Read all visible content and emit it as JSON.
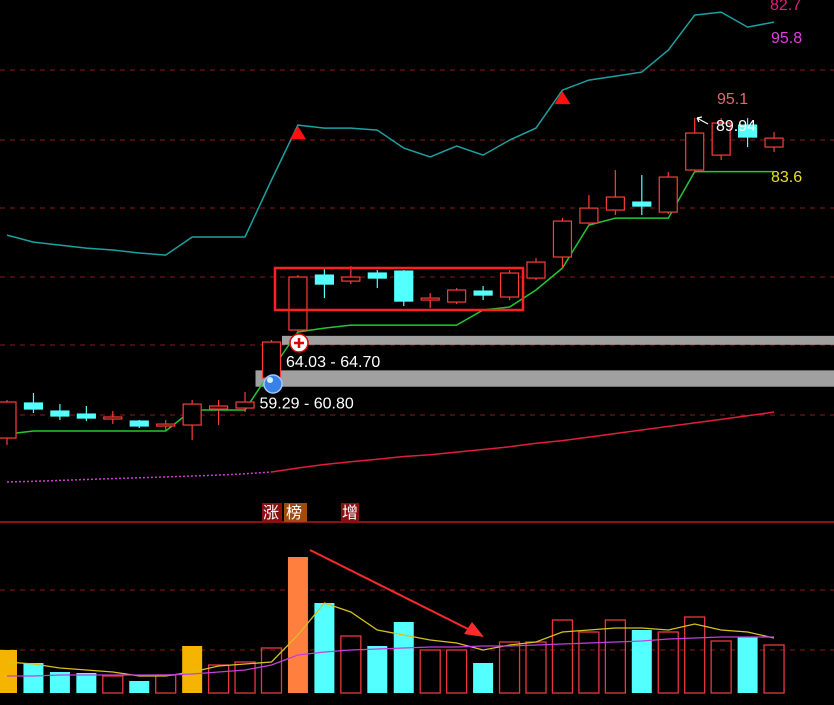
{
  "chart_data": [
    {
      "type": "candlestick",
      "ylim": [
        44,
        103
      ],
      "up_color": "#ff3b3b",
      "down_color": "#54ffff",
      "candles": [
        {
          "open": 53.49,
          "high": 57.79,
          "low": 52.7,
          "close": 57.56
        },
        {
          "open": 57.45,
          "high": 58.58,
          "low": 56.32,
          "close": 56.77
        },
        {
          "open": 56.54,
          "high": 57.33,
          "low": 55.53,
          "close": 55.98
        },
        {
          "open": 56.2,
          "high": 57.11,
          "low": 55.41,
          "close": 55.75
        },
        {
          "open": 55.64,
          "high": 56.54,
          "low": 55.07,
          "close": 55.87
        },
        {
          "open": 55.41,
          "high": 55.53,
          "low": 54.62,
          "close": 54.85
        },
        {
          "open": 54.85,
          "high": 55.53,
          "low": 54.4,
          "close": 55.07
        },
        {
          "open": 54.96,
          "high": 57.79,
          "low": 53.27,
          "close": 57.33
        },
        {
          "open": 56.77,
          "high": 57.79,
          "low": 54.96,
          "close": 57.11
        },
        {
          "open": 56.88,
          "high": 58.69,
          "low": 56.43,
          "close": 57.56
        },
        {
          "open": 60.27,
          "high": 64.57,
          "low": 59.48,
          "close": 64.34
        },
        {
          "open": 65.7,
          "high": 71.91,
          "low": 65.47,
          "close": 71.69
        },
        {
          "open": 71.91,
          "high": 72.7,
          "low": 69.31,
          "close": 70.89
        },
        {
          "open": 71.23,
          "high": 72.93,
          "low": 70.89,
          "close": 71.69
        },
        {
          "open": 72.14,
          "high": 72.48,
          "low": 70.44,
          "close": 71.57
        },
        {
          "open": 72.36,
          "high": 72.48,
          "low": 68.41,
          "close": 68.97
        },
        {
          "open": 69.09,
          "high": 69.88,
          "low": 68.18,
          "close": 69.31
        },
        {
          "open": 68.86,
          "high": 70.44,
          "low": 68.63,
          "close": 70.22
        },
        {
          "open": 70.1,
          "high": 70.67,
          "low": 69.09,
          "close": 69.65
        },
        {
          "open": 69.43,
          "high": 72.48,
          "low": 69.09,
          "close": 72.14
        },
        {
          "open": 71.57,
          "high": 73.83,
          "low": 71.35,
          "close": 73.38
        },
        {
          "open": 73.95,
          "high": 78.35,
          "low": 72.7,
          "close": 78.01
        },
        {
          "open": 77.79,
          "high": 80.95,
          "low": 77.45,
          "close": 79.48
        },
        {
          "open": 79.26,
          "high": 83.78,
          "low": 78.69,
          "close": 80.73
        },
        {
          "open": 80.16,
          "high": 83.21,
          "low": 78.69,
          "close": 79.71
        },
        {
          "open": 79.03,
          "high": 83.55,
          "low": 78.8,
          "close": 82.99
        },
        {
          "open": 83.78,
          "high": 89.65,
          "low": 83.55,
          "close": 87.96
        },
        {
          "open": 85.47,
          "high": 89.65,
          "low": 84.91,
          "close": 89.09
        },
        {
          "open": 88.86,
          "high": 89.65,
          "low": 86.38,
          "close": 87.51
        },
        {
          "open": 86.38,
          "high": 88.07,
          "low": 85.81,
          "close": 87.39
        }
      ],
      "lines": [
        {
          "color": "#1fa0a0",
          "values": [
            76.43,
            75.64,
            75.3,
            74.96,
            74.74,
            74.4,
            74.17,
            76.21,
            76.21,
            76.21,
            82.65,
            88.86,
            88.52,
            88.52,
            88.3,
            86.26,
            85.25,
            86.49,
            85.47,
            87.17,
            88.52,
            92.82,
            93.95,
            94.4,
            94.85,
            97.34,
            101.29,
            101.63,
            99.94,
            100.5
          ]
        },
        {
          "color": "#22c832",
          "values": [
            53.94,
            54.28,
            54.28,
            54.28,
            54.28,
            54.28,
            54.28,
            56.66,
            56.66,
            56.66,
            61.18,
            65.47,
            65.92,
            66.26,
            66.26,
            66.26,
            66.26,
            66.26,
            67.96,
            68.3,
            70.22,
            72.7,
            77.56,
            78.35,
            78.35,
            78.35,
            83.6,
            83.6,
            83.6,
            83.6
          ]
        },
        {
          "color": "#d040d0",
          "dotted": true,
          "values": [
            48.52,
            48.6,
            48.7,
            48.8,
            48.9,
            49.0,
            49.1,
            49.2,
            49.3,
            49.45,
            49.65,
            null,
            null,
            null,
            null,
            null,
            null,
            null,
            null,
            null,
            null,
            null,
            null,
            null,
            null,
            null,
            null,
            null,
            null,
            null
          ]
        },
        {
          "color": "#e01e3c",
          "values": [
            null,
            null,
            null,
            null,
            null,
            null,
            null,
            null,
            null,
            null,
            49.65,
            50.1,
            50.5,
            50.8,
            51.1,
            51.4,
            51.6,
            51.9,
            52.2,
            52.5,
            52.9,
            53.2,
            53.6,
            54.0,
            54.4,
            54.8,
            55.2,
            55.6,
            56.0,
            56.43
          ]
        }
      ],
      "signals": [
        11,
        21
      ],
      "zones": [
        {
          "low": 64.03,
          "high": 64.7,
          "label": "64.03 - 64.70",
          "from": 11
        },
        {
          "low": 59.29,
          "high": 60.8,
          "label": "59.29 - 60.80",
          "from": 10
        }
      ],
      "labels": [
        "82.7",
        "95.8",
        "95.1",
        "89.94",
        "83.6"
      ],
      "badges": [
        "涨",
        "榜",
        "增"
      ]
    },
    {
      "type": "bar",
      "ylim": [
        0,
        171
      ],
      "hollow_color": "#e8383d",
      "values": [
        43,
        30,
        21,
        20,
        17,
        12,
        18,
        47,
        28,
        31,
        45,
        136,
        90,
        57,
        47,
        71,
        43,
        43,
        30,
        51,
        51,
        73,
        61,
        73,
        63,
        61,
        76,
        52,
        56,
        48
      ],
      "colors": [
        "#f5b400",
        "#54ffff",
        "#54ffff",
        "#54ffff",
        "#e8383d",
        "#54ffff",
        "#e8383d",
        "#f5b400",
        "#e8383d",
        "#e8383d",
        "#e8383d",
        "#ff7f3f",
        "#54ffff",
        "#e8383d",
        "#54ffff",
        "#54ffff",
        "#e8383d",
        "#e8383d",
        "#54ffff",
        "#e8383d",
        "#e8383d",
        "#e8383d",
        "#e8383d",
        "#e8383d",
        "#54ffff",
        "#e8383d",
        "#e8383d",
        "#e8383d",
        "#54ffff",
        "#e8383d"
      ],
      "lines": [
        {
          "color": "#d8c020",
          "values": [
            31,
            29,
            25,
            23,
            21,
            17,
            17,
            21,
            27,
            29,
            31,
            58,
            90,
            81,
            63,
            58,
            53,
            50,
            43,
            48,
            51,
            61,
            63,
            65,
            65,
            63,
            69,
            63,
            61,
            55
          ]
        },
        {
          "color": "#c040e0",
          "values": [
            17,
            17,
            18,
            18,
            18,
            18,
            18,
            19,
            21,
            23,
            28,
            38,
            41,
            43,
            44,
            45,
            46,
            46,
            47,
            47,
            48,
            49,
            50,
            51,
            52,
            54,
            55,
            56,
            56,
            56
          ]
        }
      ]
    }
  ]
}
